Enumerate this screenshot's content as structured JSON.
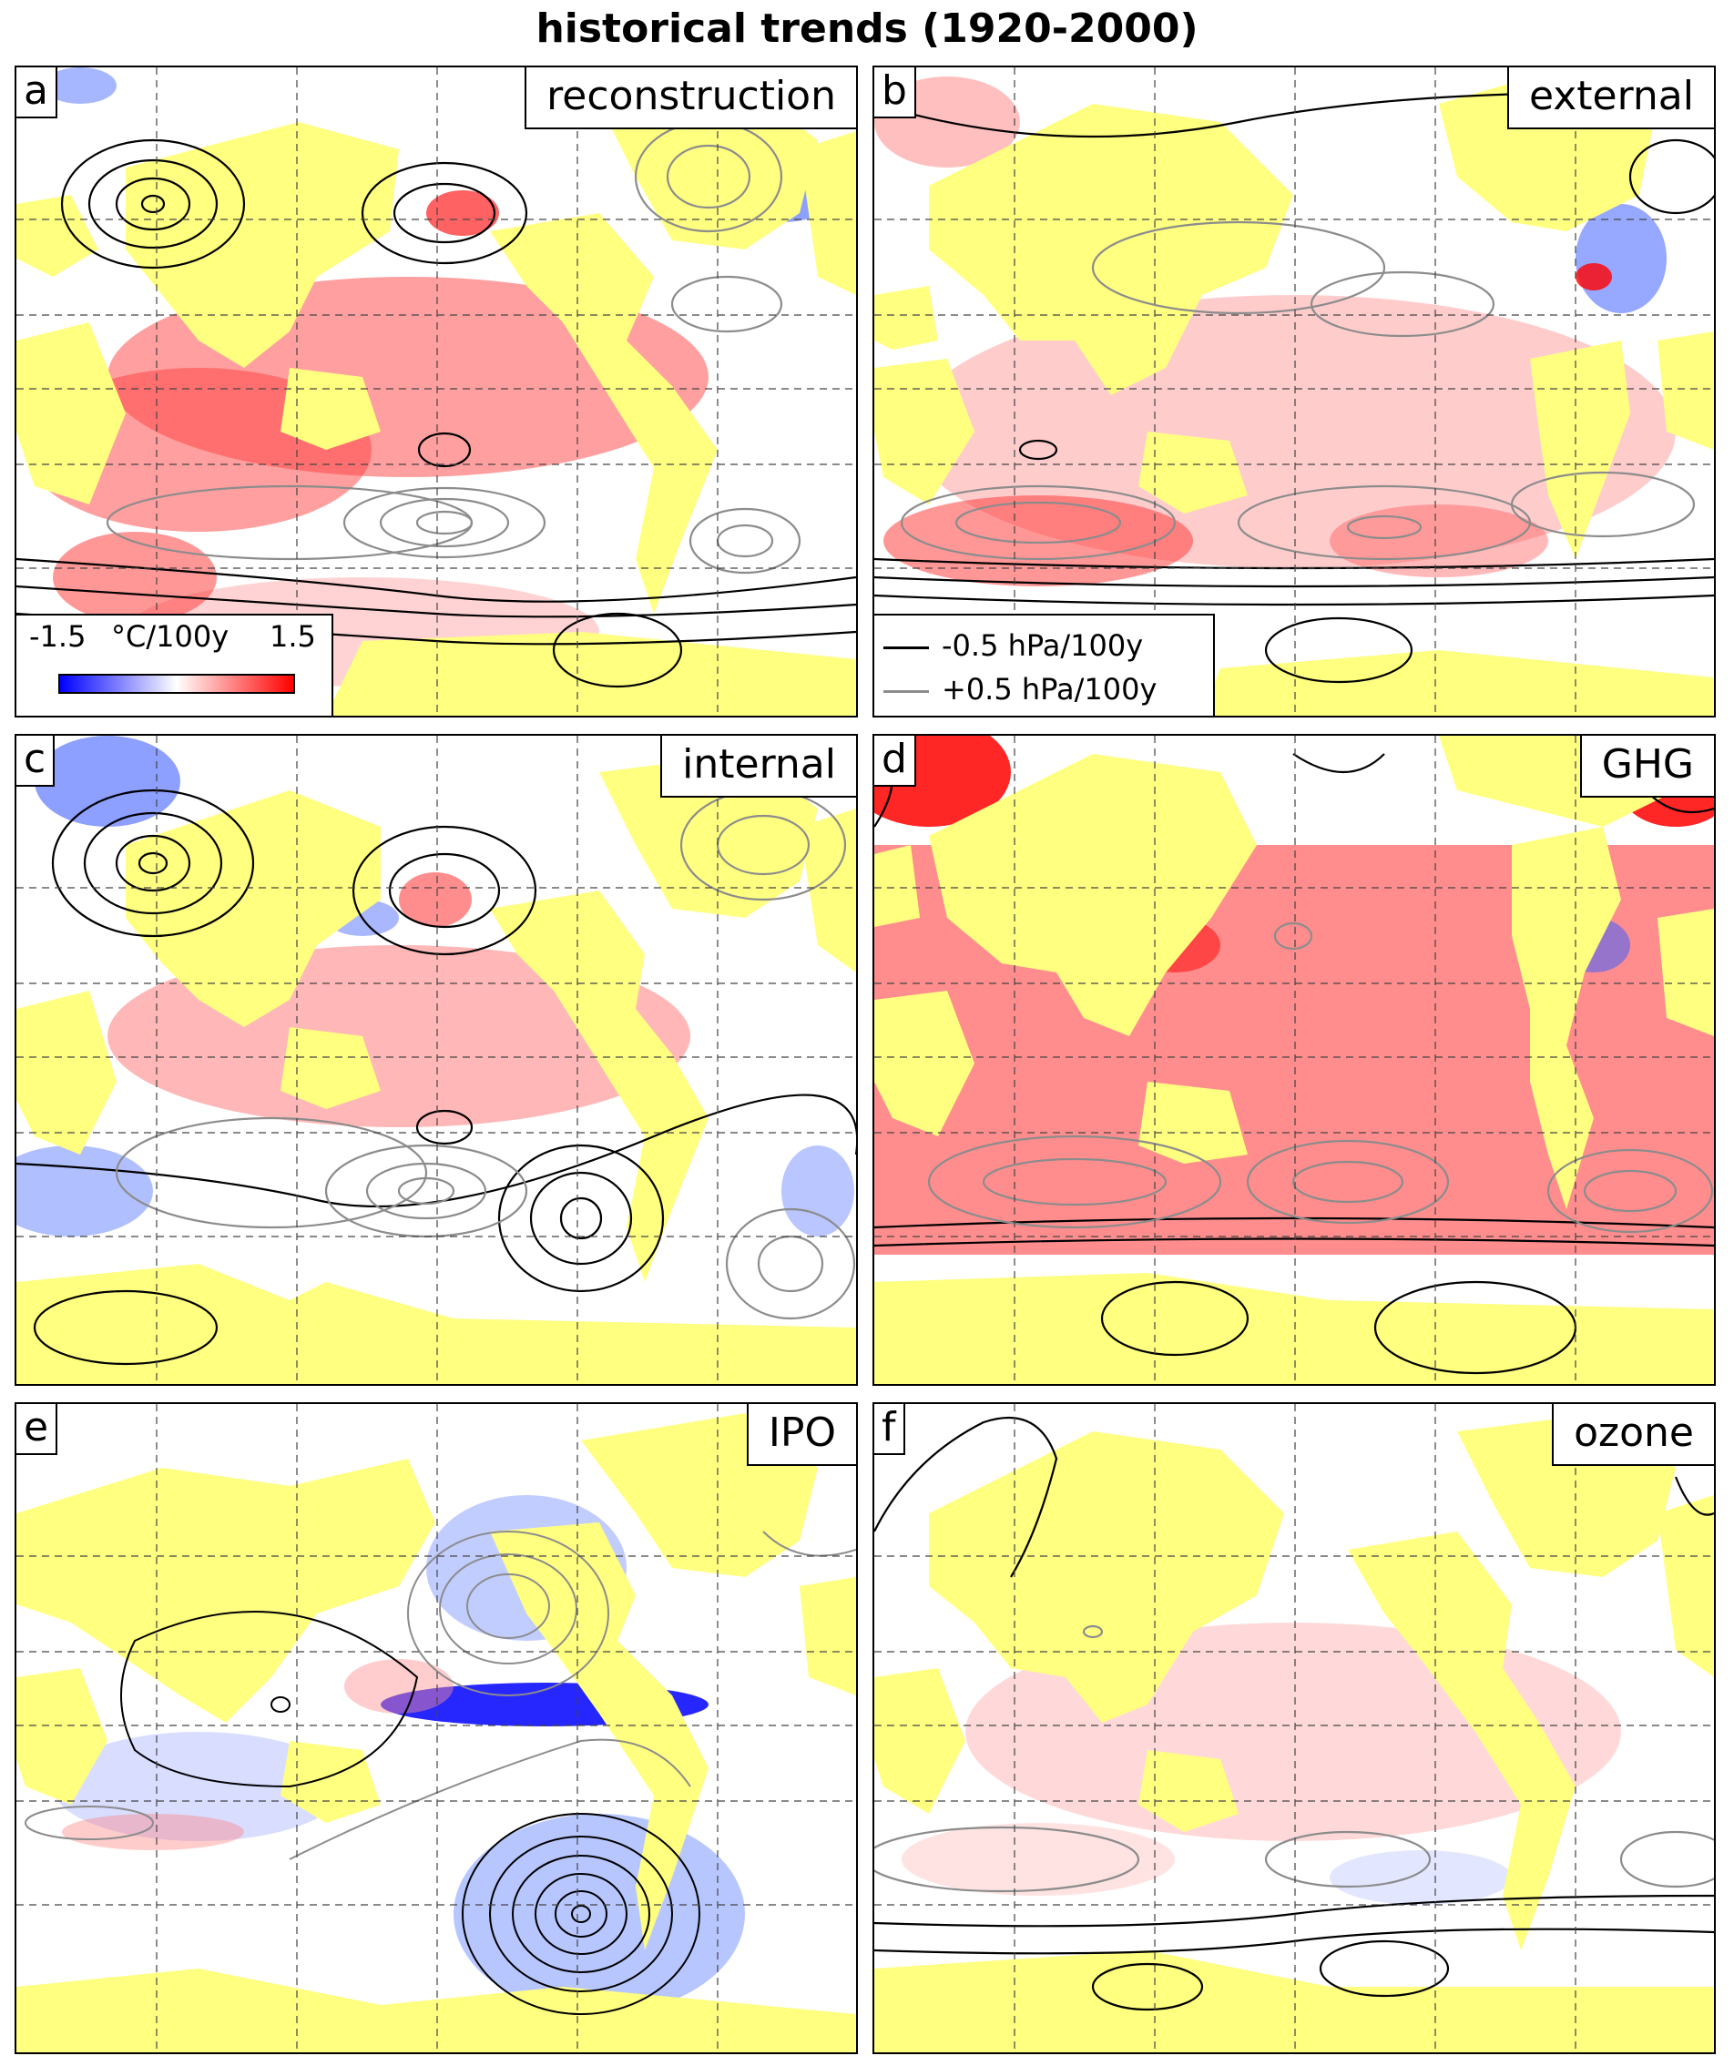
{
  "title": "historical trends (1920-2000)",
  "colors": {
    "land": "#ffff80",
    "warm": "#ff0000",
    "cool": "#0000ff",
    "neutral": "#ffffff",
    "contour_negative": "#000000",
    "contour_positive": "#8c8c8c",
    "grid": "#444444"
  },
  "panels": [
    {
      "letter": "a",
      "name": "reconstruction"
    },
    {
      "letter": "b",
      "name": "external"
    },
    {
      "letter": "c",
      "name": "internal"
    },
    {
      "letter": "d",
      "name": "GHG"
    },
    {
      "letter": "e",
      "name": "IPO"
    },
    {
      "letter": "f",
      "name": "ozone"
    }
  ],
  "colorbar": {
    "min_label": "-1.5",
    "unit": "°C/100y",
    "max_label": "1.5",
    "range": [
      -1.5,
      1.5
    ]
  },
  "contour_legend": [
    {
      "label": "-0.5 hPa/100y",
      "style": "negative"
    },
    {
      "label": "+0.5 hPa/100y",
      "style": "positive"
    }
  ]
}
